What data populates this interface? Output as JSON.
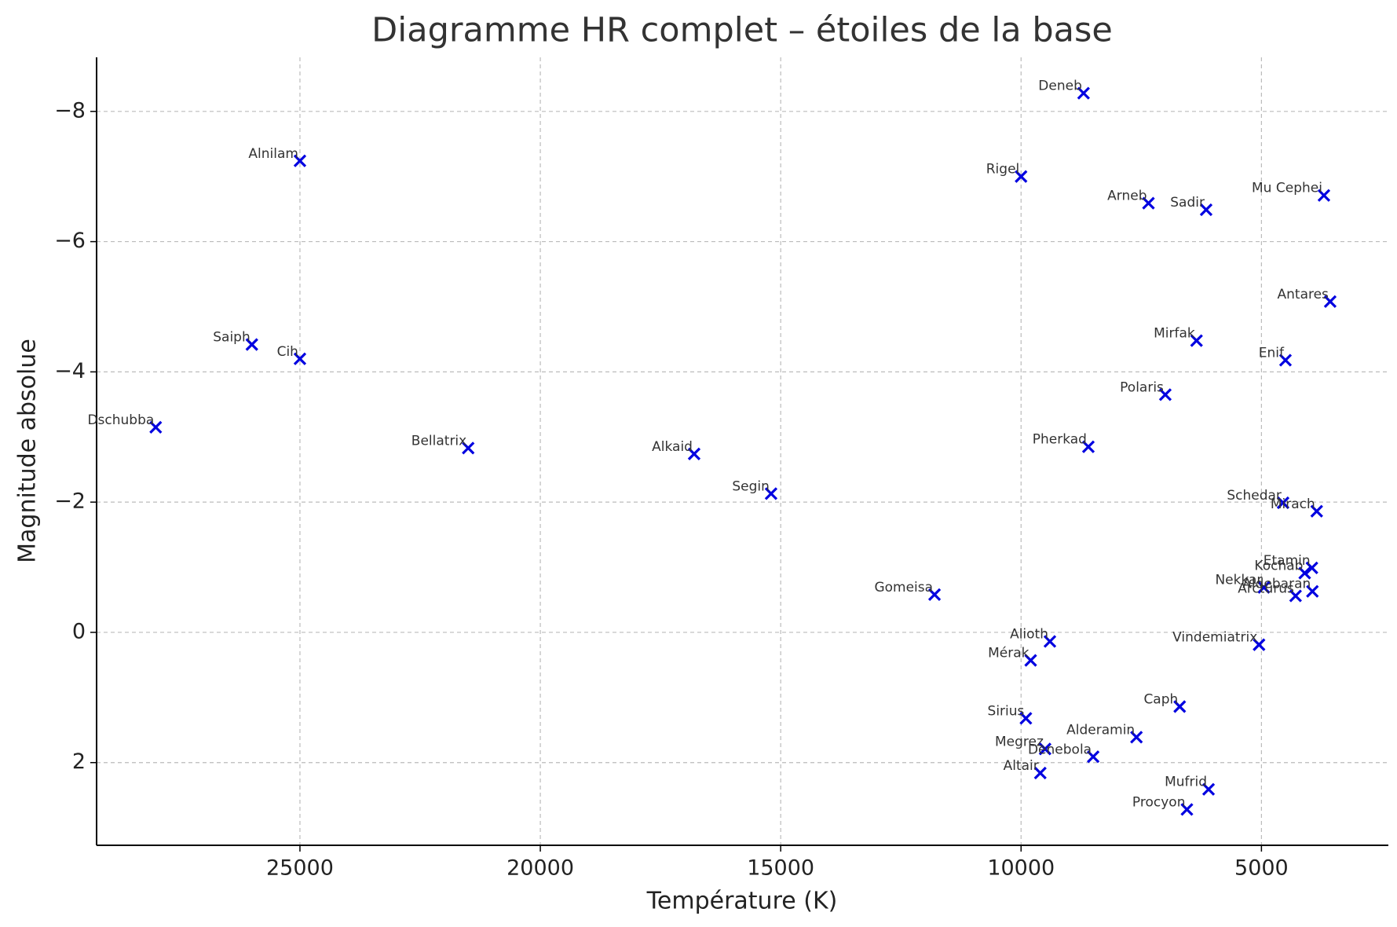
{
  "chart_data": {
    "type": "scatter",
    "title": "Diagramme HR complet – étoiles de la base",
    "x_label": "Température (K)",
    "y_label": "Magnitude absolue",
    "labels": [
      "Deneb",
      "Alnilam",
      "Rigel",
      "Arneb",
      "Sadir",
      "Mu Cephei",
      "Antares",
      "Saiph",
      "Cih",
      "Mirfak",
      "Enif",
      "Polaris",
      "Dschubba",
      "Bellatrix",
      "Pherkad",
      "Alkaid",
      "Segin",
      "Schedar",
      "Mirach",
      "Etamin",
      "Kochab",
      "Nekkar",
      "Aldebaran",
      "Arcturus",
      "Gomeisa",
      "Alioth",
      "Vindemiatrix",
      "Mérak",
      "Caph",
      "Sirius",
      "Alderamin",
      "Megrez",
      "Denebola",
      "Altair",
      "Mufrid",
      "Procyon"
    ],
    "x": [
      8700,
      25000,
      10000,
      7350,
      6150,
      3700,
      3570,
      26000,
      25000,
      6350,
      4500,
      7000,
      28000,
      21500,
      8600,
      16800,
      15200,
      4550,
      3850,
      3950,
      4100,
      4950,
      3940,
      4290,
      11800,
      9400,
      5050,
      9800,
      6700,
      9900,
      7600,
      9500,
      8500,
      9600,
      6100,
      6550
    ],
    "values": [
      -8.28,
      -7.24,
      -7.0,
      -6.59,
      -6.49,
      -6.71,
      -5.08,
      -4.42,
      -4.2,
      -4.48,
      -4.18,
      -3.65,
      -3.15,
      -2.83,
      -2.85,
      -2.74,
      -2.13,
      -1.99,
      -1.86,
      -0.99,
      -0.91,
      -0.69,
      -0.63,
      -0.56,
      -0.58,
      0.14,
      0.19,
      0.43,
      1.14,
      1.32,
      1.61,
      1.79,
      1.91,
      2.16,
      2.41,
      2.72
    ],
    "color": "#0000e0",
    "xlim": [
      29230,
      2360
    ],
    "ylim": [
      3.27,
      -8.83
    ],
    "xticks": [
      25000,
      20000,
      15000,
      10000,
      5000
    ],
    "yticks": [
      {
        "value": -8,
        "label": "−8"
      },
      {
        "value": -6,
        "label": "−6"
      },
      {
        "value": -4,
        "label": "−4"
      },
      {
        "value": -2,
        "label": "−2"
      },
      0,
      2
    ],
    "grid": true
  }
}
